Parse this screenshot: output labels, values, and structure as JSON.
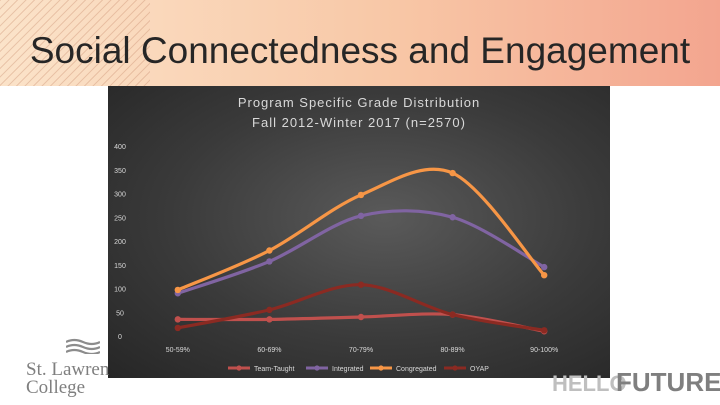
{
  "slide": {
    "title": "Social Connectedness and Engagement",
    "logo_left": {
      "line1": "St. Lawren",
      "line2": "College"
    },
    "logo_right": {
      "hello": "HELLO",
      "future": "FUTURE"
    }
  },
  "colors": {
    "Team-Taught": "#c0504d",
    "Integrated": "#8064a2",
    "Congregated": "#f79646",
    "OYAP": "#8b2a22"
  },
  "chart_data": {
    "type": "line",
    "title": "Program Specific Grade Distribution",
    "subtitle": "Fall 2012-Winter 2017 (n=2570)",
    "categories": [
      "50-59%",
      "60-69%",
      "70-79%",
      "80-89%",
      "90-100%"
    ],
    "ylim": [
      0,
      400
    ],
    "yticks": [
      0,
      50,
      100,
      150,
      200,
      250,
      300,
      350,
      400
    ],
    "grid": false,
    "legend": "bottom",
    "smooth": true,
    "series": [
      {
        "name": "Team-Taught",
        "values": [
          35,
          35,
          40,
          45,
          10
        ]
      },
      {
        "name": "Integrated",
        "values": [
          90,
          157,
          253,
          250,
          145
        ]
      },
      {
        "name": "Congregated",
        "values": [
          97,
          180,
          297,
          343,
          128
        ]
      },
      {
        "name": "OYAP",
        "values": [
          17,
          55,
          108,
          45,
          12
        ]
      }
    ]
  }
}
